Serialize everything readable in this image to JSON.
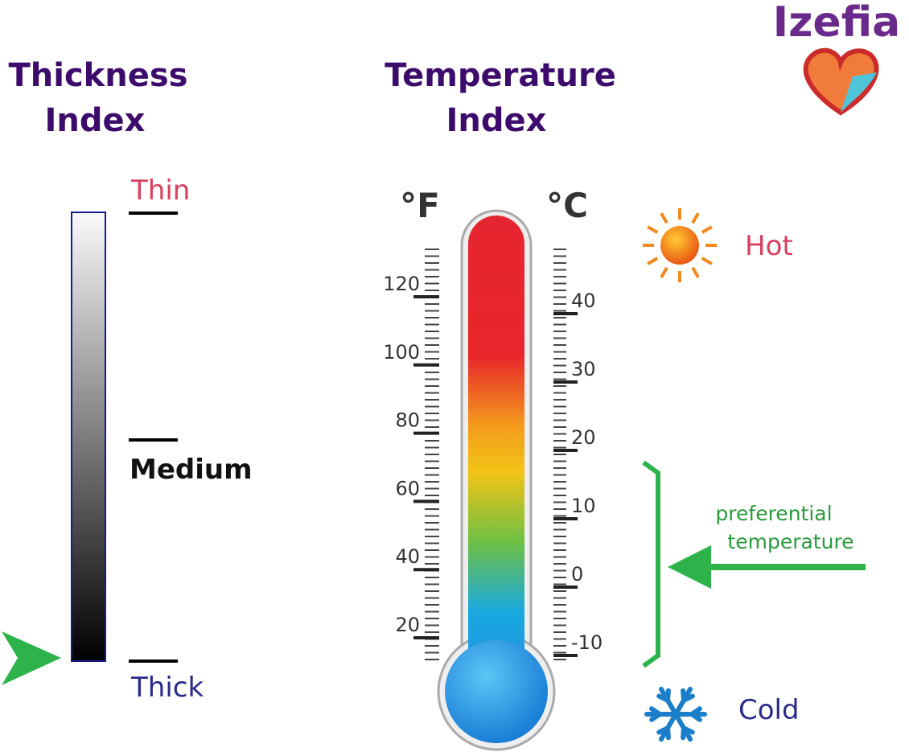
{
  "brand": "Izefia",
  "thickness": {
    "title_lines": [
      "Thickness",
      "Index"
    ],
    "thin": "Thin",
    "medium": "Medium",
    "thick": "Thick"
  },
  "temperature": {
    "title_lines": [
      "Temperature",
      "Index"
    ],
    "f_unit": "°F",
    "c_unit": "°C",
    "f_ticks": [
      20,
      40,
      60,
      80,
      100,
      120
    ],
    "c_ticks": [
      -10,
      0,
      10,
      20,
      30,
      40
    ],
    "hot": "Hot",
    "cold": "Cold",
    "note_lines": [
      "preferential",
      "temperature"
    ]
  }
}
